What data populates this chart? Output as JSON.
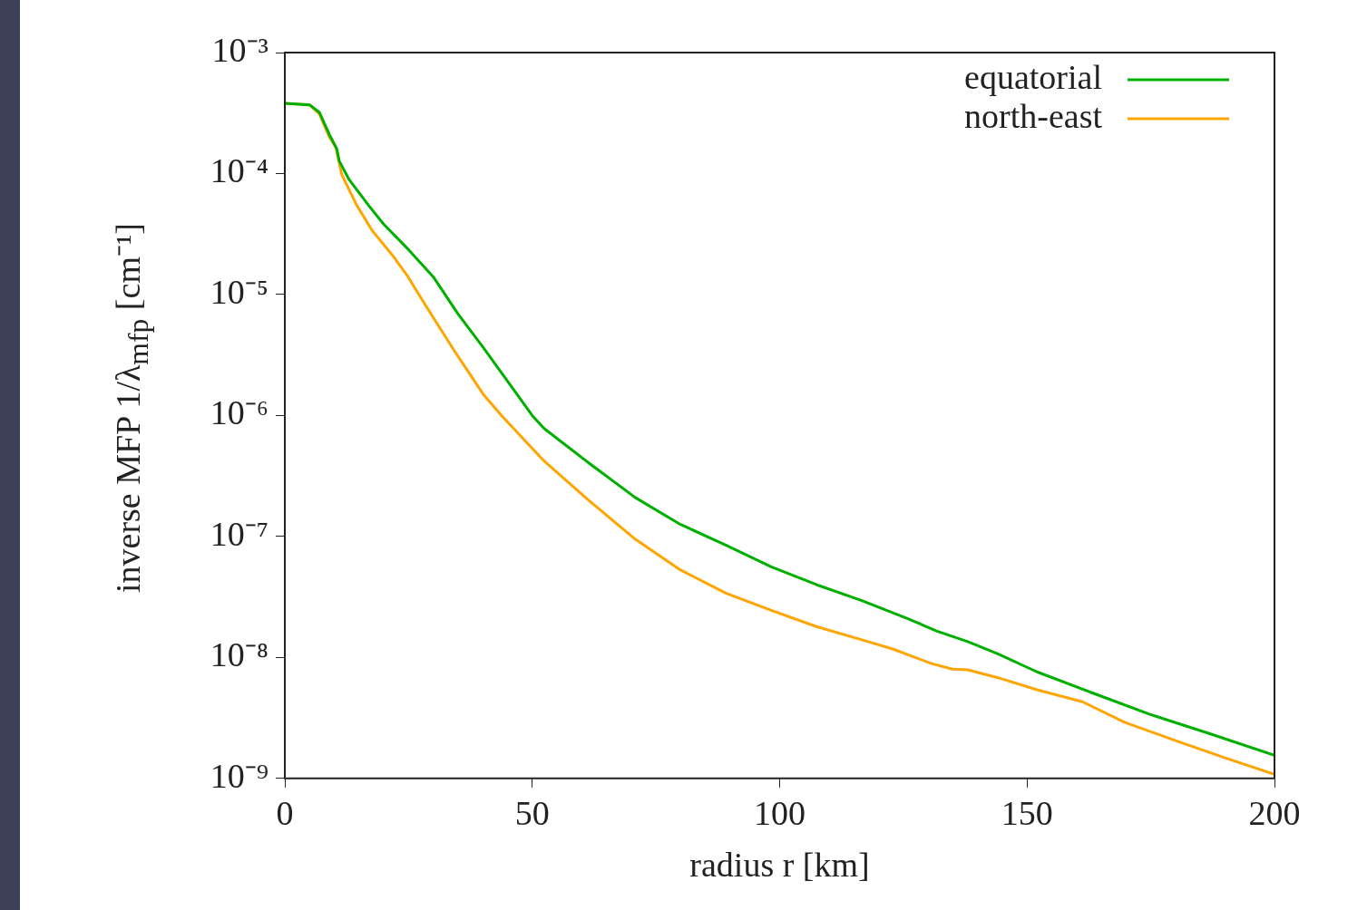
{
  "chart_data": {
    "type": "line",
    "xlabel": "radius r [km]",
    "ylabel": "inverse MFP 1/λ$_{mfp}$ [cm⁻¹]",
    "log": "y",
    "legend": "top right",
    "marker": "none",
    "xlim": [
      0,
      200
    ],
    "xticks": [
      0,
      50,
      100,
      150,
      200
    ],
    "ylim": [
      1e-09,
      0.001
    ],
    "yticks": [
      {
        "value": 1e-09,
        "label": "10⁻⁹"
      },
      {
        "value": 1e-08,
        "label": "10⁻⁸"
      },
      {
        "value": 1e-07,
        "label": "10⁻⁷"
      },
      {
        "value": 1e-06,
        "label": "10⁻⁶"
      },
      {
        "value": 1e-05,
        "label": "10⁻⁵"
      },
      {
        "value": 0.0001,
        "label": "10⁻⁴"
      },
      {
        "value": 0.001,
        "label": "10⁻³"
      }
    ],
    "series": [
      {
        "name": "equatorial",
        "color": "#00b000",
        "x": [
          0,
          5,
          7,
          9,
          10.5,
          11,
          13,
          17,
          20,
          25,
          30,
          35,
          40,
          50,
          52.4,
          61.6,
          70.8,
          79.9,
          89.1,
          98.3,
          107.4,
          116.6,
          125.8,
          131.8,
          138,
          144.1,
          152,
          163.7,
          174.7,
          186.8,
          200
        ],
        "values": [
          0.00038,
          0.00037,
          0.00032,
          0.00021,
          0.00016,
          0.000127,
          8.9e-05,
          5.4e-05,
          3.8e-05,
          2.35e-05,
          1.4e-05,
          6.9e-06,
          3.7e-06,
          1e-06,
          7.8e-07,
          4e-07,
          2.1e-07,
          1.26e-07,
          8.5e-08,
          5.6e-08,
          4e-08,
          2.95e-08,
          2.1e-08,
          1.65e-08,
          1.35e-08,
          1.07e-08,
          7.6e-09,
          5e-09,
          3.4e-09,
          2.35e-09,
          1.55e-09
        ]
      },
      {
        "name": "north-east",
        "color": "#ffa500",
        "x": [
          0,
          5,
          7,
          9,
          10.3,
          11.5,
          14.5,
          17.6,
          21.8,
          24.9,
          28,
          34.1,
          40.1,
          43.8,
          52.4,
          61.6,
          70.8,
          79.9,
          89.1,
          98.3,
          107.4,
          116.6,
          122.7,
          130.7,
          134.9,
          138,
          144.1,
          152,
          161.2,
          169.8,
          180.8,
          190,
          200
        ],
        "values": [
          0.00038,
          0.00037,
          0.00031,
          0.0002,
          0.000165,
          9.8e-05,
          5.5e-05,
          3.4e-05,
          2.1e-05,
          1.4e-05,
          8.7e-06,
          3.5e-06,
          1.5e-06,
          1e-06,
          4.2e-07,
          1.96e-07,
          9.5e-08,
          5.3e-08,
          3.4e-08,
          2.45e-08,
          1.8e-08,
          1.4e-08,
          1.18e-08,
          8.9e-09,
          8e-09,
          7.9e-09,
          6.8e-09,
          5.4e-09,
          4.3e-09,
          2.9e-09,
          2e-09,
          1.48e-09,
          1.08e-09
        ]
      }
    ]
  }
}
